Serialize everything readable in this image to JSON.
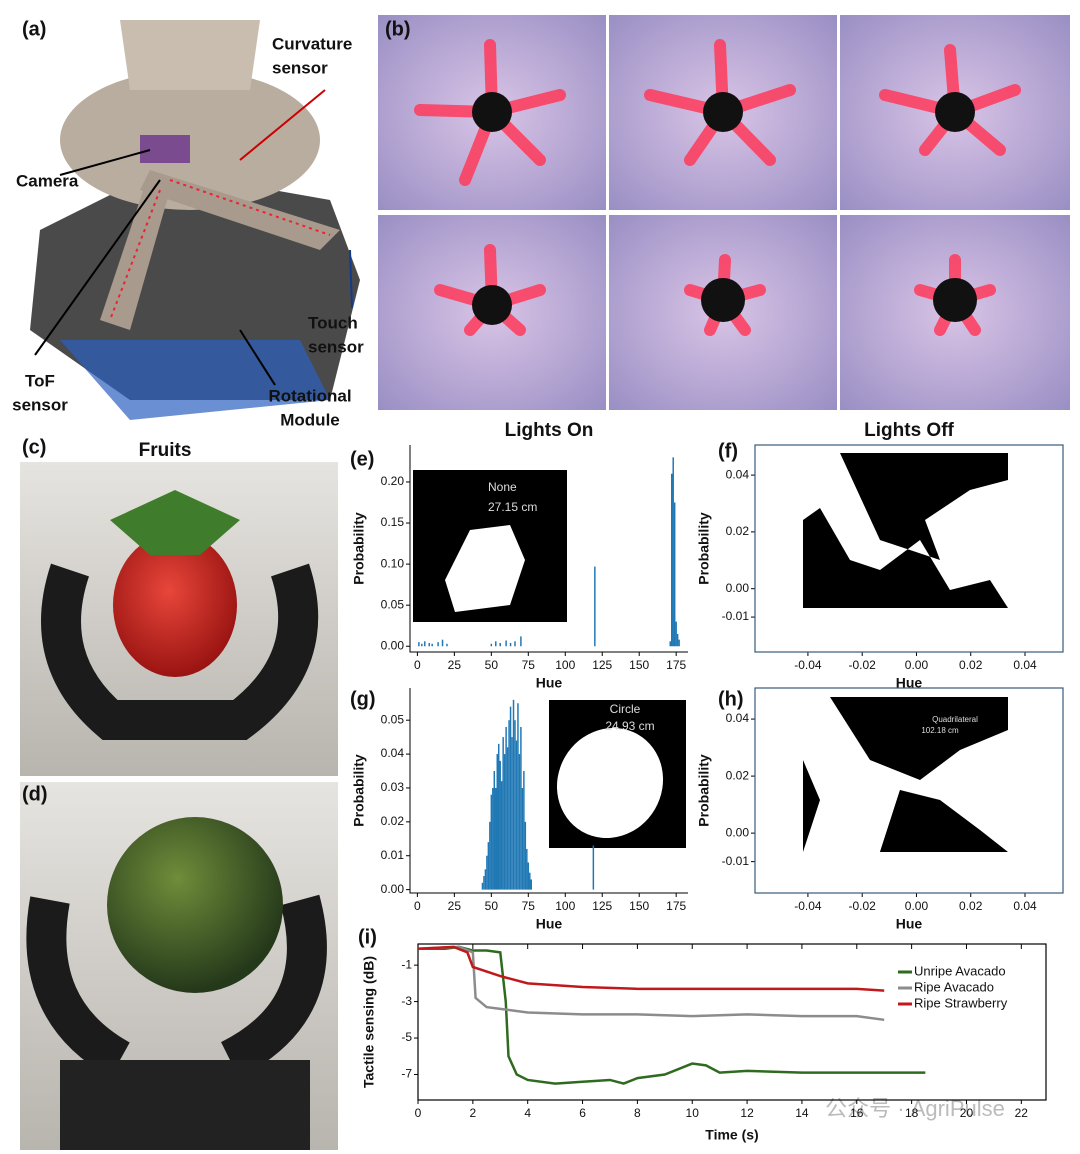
{
  "panels": {
    "a": "(a)",
    "b": "(b)",
    "c": "(c)",
    "d": "(d)",
    "e": "(e)",
    "f": "(f)",
    "g": "(g)",
    "h": "(h)",
    "i": "(i)"
  },
  "annotations": {
    "curvature": [
      "Curvature",
      "sensor"
    ],
    "camera": [
      "Camera"
    ],
    "touch": [
      "Touch",
      "sensor"
    ],
    "tof": [
      "ToF",
      "sensor"
    ],
    "rotational": [
      "Rotational",
      "Module"
    ]
  },
  "fruits_title": "Fruits",
  "watermark": "公众号 · AgriPulse",
  "chart_data": [
    {
      "type": "bar",
      "title": "Lights On",
      "xlabel": "Hue",
      "ylabel": "Probability",
      "color": "#1f77b4",
      "x": [
        1,
        3,
        5,
        8,
        10,
        14,
        17,
        20,
        50,
        53,
        56,
        60,
        63,
        66,
        70,
        120,
        171,
        172,
        173,
        174,
        175,
        176,
        177
      ],
      "values": [
        0.005,
        0.003,
        0.006,
        0.004,
        0.003,
        0.005,
        0.008,
        0.003,
        0.003,
        0.006,
        0.004,
        0.007,
        0.004,
        0.006,
        0.012,
        0.097,
        0.006,
        0.21,
        0.23,
        0.175,
        0.03,
        0.015,
        0.008
      ],
      "xlim": [
        -5,
        183
      ],
      "ylim": [
        -0.007,
        0.245
      ],
      "xticks": [
        0,
        25,
        50,
        75,
        100,
        125,
        150,
        175
      ],
      "yticks": [
        {
          "value": 0,
          "label": "0.00"
        },
        0.05,
        {
          "value": 0.1,
          "label": "0.10"
        },
        0.15,
        {
          "value": 0.2,
          "label": "0.20"
        }
      ],
      "inset": [
        "None",
        "27.15 cm"
      ]
    },
    {
      "type": "image",
      "title": "Lights Off",
      "xlabel": "Hue",
      "ylabel": "Probability",
      "xlim": [
        -0.0595,
        0.054
      ],
      "ylim": [
        -0.0223,
        0.0506
      ],
      "xticks": [
        -0.04,
        -0.02,
        {
          "value": 0,
          "label": "0.00"
        },
        0.02,
        0.04
      ],
      "yticks": [
        -0.01,
        {
          "value": 0,
          "label": "0.00"
        },
        0.02,
        0.04
      ]
    },
    {
      "type": "bar",
      "xlabel": "Hue",
      "ylabel": "Probability",
      "color": "#1f77b4",
      "x": [
        44,
        45,
        46,
        47,
        48,
        49,
        50,
        51,
        52,
        53,
        54,
        55,
        56,
        57,
        58,
        59,
        60,
        61,
        62,
        63,
        64,
        65,
        66,
        67,
        68,
        69,
        70,
        71,
        72,
        73,
        74,
        75,
        76,
        77,
        119
      ],
      "values": [
        0.002,
        0.004,
        0.006,
        0.01,
        0.014,
        0.02,
        0.028,
        0.03,
        0.035,
        0.03,
        0.04,
        0.043,
        0.038,
        0.032,
        0.045,
        0.04,
        0.048,
        0.042,
        0.05,
        0.054,
        0.045,
        0.056,
        0.05,
        0.044,
        0.055,
        0.04,
        0.048,
        0.03,
        0.035,
        0.02,
        0.012,
        0.008,
        0.005,
        0.003,
        0.013
      ],
      "xlim": [
        -5,
        183
      ],
      "ylim": [
        -0.001,
        0.0595
      ],
      "xticks": [
        0,
        25,
        50,
        75,
        100,
        125,
        150,
        175
      ],
      "yticks": [
        {
          "value": 0,
          "label": "0.00"
        },
        0.01,
        0.02,
        0.03,
        0.04,
        0.05
      ],
      "inset": [
        "Circle",
        "24.93 cm"
      ]
    },
    {
      "type": "image",
      "xlabel": "Hue",
      "ylabel": "Probability",
      "xlim": [
        -0.0595,
        0.054
      ],
      "ylim": [
        -0.021,
        0.0509
      ],
      "xticks": [
        -0.04,
        -0.02,
        {
          "value": 0,
          "label": "0.00"
        },
        0.02,
        0.04
      ],
      "yticks": [
        -0.01,
        {
          "value": 0,
          "label": "0.00"
        },
        0.02,
        0.04
      ],
      "inset": [
        "Quadrilateral",
        "102.18 cm"
      ]
    },
    {
      "type": "line",
      "xlabel": "Time (s)",
      "ylabel": "Tactile sensing (dB)",
      "xlim": [
        0,
        22.9
      ],
      "ylim": [
        -8.4,
        0.16
      ],
      "xticks": [
        0,
        2,
        4,
        6,
        8,
        10,
        12,
        14,
        16,
        18,
        20,
        22
      ],
      "yticks": [
        -1,
        -3,
        -5,
        -7
      ],
      "series": [
        {
          "name": "Unripe Avacado",
          "color": "#2e6b1f",
          "x": [
            0,
            1,
            1.5,
            2,
            2.5,
            3,
            3.2,
            3.3,
            3.6,
            4,
            5,
            6,
            7,
            7.5,
            8,
            9,
            10,
            10.5,
            11,
            12,
            14,
            16,
            18,
            18.5
          ],
          "values": [
            -0.1,
            -0.1,
            0,
            -0.2,
            -0.2,
            -0.3,
            -3,
            -6,
            -7,
            -7.3,
            -7.5,
            -7.4,
            -7.3,
            -7.5,
            -7.2,
            -7,
            -6.4,
            -6.5,
            -6.9,
            -6.8,
            -6.9,
            -6.9,
            -6.9,
            -6.9
          ]
        },
        {
          "name": "Ripe Avacado",
          "color": "#8c8c8c",
          "x": [
            0,
            1.5,
            2,
            2.1,
            2.5,
            3,
            4,
            6,
            8,
            10,
            12,
            14,
            16,
            17
          ],
          "values": [
            -0.1,
            0,
            -0.3,
            -2.8,
            -3.3,
            -3.4,
            -3.6,
            -3.7,
            -3.7,
            -3.8,
            -3.7,
            -3.8,
            -3.8,
            -4
          ]
        },
        {
          "name": "Ripe Strawberry",
          "color": "#c0191c",
          "x": [
            0,
            1.3,
            1.8,
            2,
            3,
            4,
            6,
            8,
            10,
            12,
            14,
            16,
            17
          ],
          "values": [
            -0.1,
            0,
            -0.3,
            -1.1,
            -1.6,
            -2,
            -2.2,
            -2.3,
            -2.3,
            -2.3,
            -2.3,
            -2.3,
            -2.4
          ]
        }
      ]
    }
  ]
}
